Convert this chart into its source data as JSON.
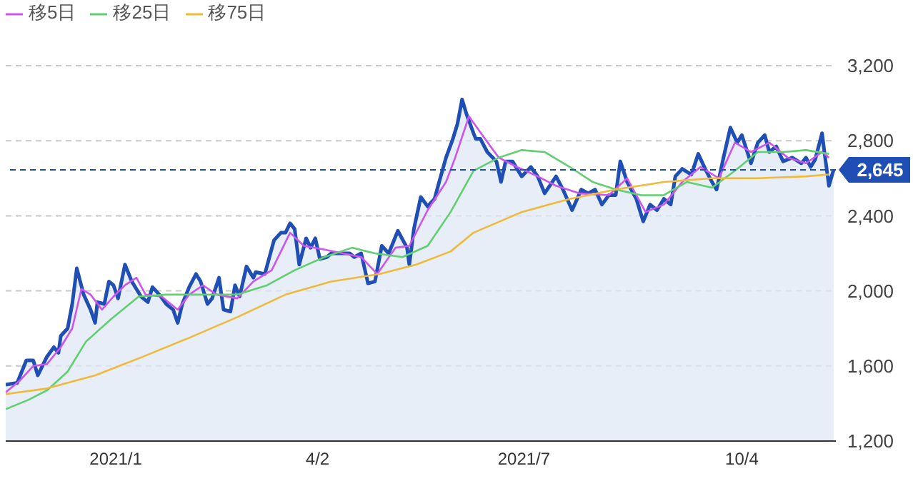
{
  "chart_data": {
    "type": "line",
    "xlim": [
      "2020-11-17",
      "2021-11-14"
    ],
    "xticks": [
      {
        "value": "2021-01-04",
        "label": "2021/1"
      },
      {
        "value": "2021-04-02",
        "label": "4/2"
      },
      {
        "value": "2021-07-01",
        "label": "2021/7"
      },
      {
        "value": "2021-10-04",
        "label": "10/4"
      }
    ],
    "ylim": [
      1200,
      3200
    ],
    "yticks": [
      {
        "value": 1200,
        "label": "1,200"
      },
      {
        "value": 1600,
        "label": "1,600"
      },
      {
        "value": 2000,
        "label": "2,000"
      },
      {
        "value": 2400,
        "label": "2,400"
      },
      {
        "value": 2800,
        "label": "2,800"
      },
      {
        "value": 3200,
        "label": "3,200"
      }
    ],
    "grid": "y",
    "legend": "top left",
    "ref_lines": [
      {
        "axis": "y",
        "value": 2645,
        "label": "2,645",
        "color": "#1f4eb4",
        "line_style": "dashed"
      }
    ],
    "series": [
      {
        "type": "area",
        "color": "#1f4eb4",
        "x": [
          "2020-11-17",
          "2020-11-22",
          "2020-11-26",
          "2020-11-29",
          "2020-12-01",
          "2020-12-05",
          "2020-12-08",
          "2020-12-10",
          "2020-12-11",
          "2020-12-14",
          "2020-12-16",
          "2020-12-18",
          "2020-12-21",
          "2020-12-24",
          "2020-12-26",
          "2020-12-27",
          "2020-12-30",
          "2021-01-01",
          "2021-01-03",
          "2021-01-05",
          "2021-01-08",
          "2021-01-11",
          "2021-01-15",
          "2021-01-18",
          "2021-01-20",
          "2021-01-23",
          "2021-01-26",
          "2021-01-29",
          "2021-01-31",
          "2021-02-02",
          "2021-02-05",
          "2021-02-08",
          "2021-02-10",
          "2021-02-13",
          "2021-02-15",
          "2021-02-18",
          "2021-02-20",
          "2021-02-23",
          "2021-02-25",
          "2021-02-27",
          "2021-03-02",
          "2021-03-05",
          "2021-03-06",
          "2021-03-10",
          "2021-03-14",
          "2021-03-17",
          "2021-03-19",
          "2021-03-21",
          "2021-03-23",
          "2021-03-25",
          "2021-03-28",
          "2021-03-30",
          "2021-04-01",
          "2021-04-03",
          "2021-04-06",
          "2021-04-08",
          "2021-04-13",
          "2021-04-16",
          "2021-04-18",
          "2021-04-21",
          "2021-04-24",
          "2021-04-27",
          "2021-04-30",
          "2021-05-03",
          "2021-05-07",
          "2021-05-11",
          "2021-05-12",
          "2021-05-14",
          "2021-05-17",
          "2021-05-20",
          "2021-05-23",
          "2021-05-25",
          "2021-05-28",
          "2021-05-31",
          "2021-06-02",
          "2021-06-04",
          "2021-06-06",
          "2021-06-09",
          "2021-06-10",
          "2021-06-12",
          "2021-06-15",
          "2021-06-19",
          "2021-06-21",
          "2021-06-23",
          "2021-06-26",
          "2021-06-30",
          "2021-07-04",
          "2021-07-07",
          "2021-07-10",
          "2021-07-15",
          "2021-07-18",
          "2021-07-22",
          "2021-07-26",
          "2021-07-29",
          "2021-08-01",
          "2021-08-04",
          "2021-08-07",
          "2021-08-10",
          "2021-08-12",
          "2021-08-15",
          "2021-08-19",
          "2021-08-22",
          "2021-08-25",
          "2021-08-28",
          "2021-08-31",
          "2021-09-03",
          "2021-09-05",
          "2021-09-08",
          "2021-09-12",
          "2021-09-15",
          "2021-09-18",
          "2021-09-21",
          "2021-09-23",
          "2021-09-26",
          "2021-09-29",
          "2021-10-02",
          "2021-10-04",
          "2021-10-08",
          "2021-10-11",
          "2021-10-14",
          "2021-10-16",
          "2021-10-19",
          "2021-10-22",
          "2021-10-26",
          "2021-10-30",
          "2021-11-01",
          "2021-11-03",
          "2021-11-05",
          "2021-11-08",
          "2021-11-09",
          "2021-11-11",
          "2021-11-13"
        ],
        "values": [
          1500,
          1510,
          1630,
          1630,
          1550,
          1650,
          1700,
          1670,
          1760,
          1800,
          1930,
          2120,
          1980,
          1900,
          1830,
          1940,
          1930,
          2050,
          2030,
          1960,
          2140,
          2050,
          1970,
          1940,
          2020,
          1980,
          1930,
          1900,
          1830,
          1930,
          2020,
          2090,
          2050,
          1930,
          1960,
          2070,
          1900,
          1890,
          2030,
          1970,
          2130,
          2070,
          2100,
          2090,
          2270,
          2310,
          2310,
          2360,
          2330,
          2140,
          2280,
          2230,
          2280,
          2170,
          2180,
          2200,
          2200,
          2200,
          2180,
          2200,
          2040,
          2050,
          2240,
          2200,
          2320,
          2230,
          2140,
          2330,
          2500,
          2450,
          2490,
          2580,
          2710,
          2810,
          2890,
          3020,
          2940,
          2840,
          2810,
          2810,
          2740,
          2690,
          2580,
          2690,
          2690,
          2610,
          2660,
          2610,
          2520,
          2610,
          2540,
          2430,
          2540,
          2520,
          2540,
          2460,
          2510,
          2510,
          2690,
          2580,
          2490,
          2370,
          2460,
          2430,
          2490,
          2460,
          2610,
          2650,
          2620,
          2730,
          2650,
          2580,
          2540,
          2710,
          2870,
          2790,
          2830,
          2680,
          2790,
          2830,
          2740,
          2770,
          2690,
          2710,
          2680,
          2710,
          2660,
          2700,
          2840,
          2740,
          2560,
          2645
        ]
      },
      {
        "name": "移5日",
        "color": "#cc55ee",
        "x": [
          "2020-11-17",
          "2020-11-23",
          "2020-11-29",
          "2020-12-05",
          "2020-12-11",
          "2020-12-16",
          "2020-12-20",
          "2020-12-24",
          "2020-12-29",
          "2021-01-03",
          "2021-01-08",
          "2021-01-13",
          "2021-01-17",
          "2021-01-24",
          "2021-01-31",
          "2021-02-05",
          "2021-02-11",
          "2021-02-17",
          "2021-02-26",
          "2021-03-05",
          "2021-03-13",
          "2021-03-21",
          "2021-03-27",
          "2021-04-05",
          "2021-04-13",
          "2021-04-21",
          "2021-04-28",
          "2021-05-06",
          "2021-05-12",
          "2021-05-20",
          "2021-05-28",
          "2021-06-01",
          "2021-06-07",
          "2021-06-14",
          "2021-06-20",
          "2021-06-28",
          "2021-07-07",
          "2021-07-15",
          "2021-07-25",
          "2021-08-07",
          "2021-08-15",
          "2021-08-23",
          "2021-08-31",
          "2021-09-08",
          "2021-09-16",
          "2021-09-24",
          "2021-10-01",
          "2021-10-08",
          "2021-10-16",
          "2021-10-24",
          "2021-11-01",
          "2021-11-08",
          "2021-11-11"
        ],
        "values": [
          1460,
          1520,
          1600,
          1610,
          1700,
          1800,
          2010,
          1980,
          1900,
          1970,
          2030,
          2070,
          1980,
          1970,
          1900,
          1980,
          2030,
          1980,
          1960,
          2050,
          2110,
          2310,
          2240,
          2220,
          2200,
          2180,
          2090,
          2230,
          2240,
          2430,
          2580,
          2710,
          2930,
          2810,
          2710,
          2660,
          2610,
          2560,
          2520,
          2510,
          2600,
          2420,
          2460,
          2580,
          2660,
          2600,
          2790,
          2740,
          2790,
          2710,
          2680,
          2740,
          2710
        ]
      },
      {
        "name": "移25日",
        "color": "#5fcf6f",
        "x": [
          "2020-11-17",
          "2020-11-27",
          "2020-12-05",
          "2020-12-14",
          "2020-12-22",
          "2021-01-02",
          "2021-01-14",
          "2021-01-26",
          "2021-02-10",
          "2021-02-26",
          "2021-03-11",
          "2021-03-23",
          "2021-04-05",
          "2021-04-17",
          "2021-04-27",
          "2021-05-09",
          "2021-05-20",
          "2021-05-30",
          "2021-06-09",
          "2021-06-20",
          "2021-06-30",
          "2021-07-10",
          "2021-07-21",
          "2021-07-31",
          "2021-08-10",
          "2021-08-21",
          "2021-08-31",
          "2021-09-10",
          "2021-09-21",
          "2021-10-01",
          "2021-10-11",
          "2021-10-22",
          "2021-11-01",
          "2021-11-11"
        ],
        "values": [
          1370,
          1420,
          1470,
          1570,
          1730,
          1850,
          1970,
          1980,
          1980,
          1980,
          2030,
          2110,
          2180,
          2230,
          2200,
          2180,
          2240,
          2420,
          2640,
          2710,
          2750,
          2740,
          2660,
          2580,
          2540,
          2510,
          2510,
          2580,
          2550,
          2640,
          2740,
          2740,
          2750,
          2730
        ]
      },
      {
        "name": "移75日",
        "color": "#f0b93a",
        "x": [
          "2020-11-17",
          "2020-12-05",
          "2020-12-26",
          "2021-01-16",
          "2021-02-05",
          "2021-02-26",
          "2021-03-19",
          "2021-04-08",
          "2021-04-29",
          "2021-05-15",
          "2021-05-30",
          "2021-06-09",
          "2021-06-30",
          "2021-07-21",
          "2021-08-10",
          "2021-08-31",
          "2021-09-21",
          "2021-10-11",
          "2021-11-01",
          "2021-11-11"
        ],
        "values": [
          1450,
          1480,
          1550,
          1650,
          1750,
          1860,
          1980,
          2050,
          2090,
          2140,
          2210,
          2310,
          2420,
          2490,
          2540,
          2580,
          2600,
          2600,
          2610,
          2620
        ]
      }
    ]
  }
}
